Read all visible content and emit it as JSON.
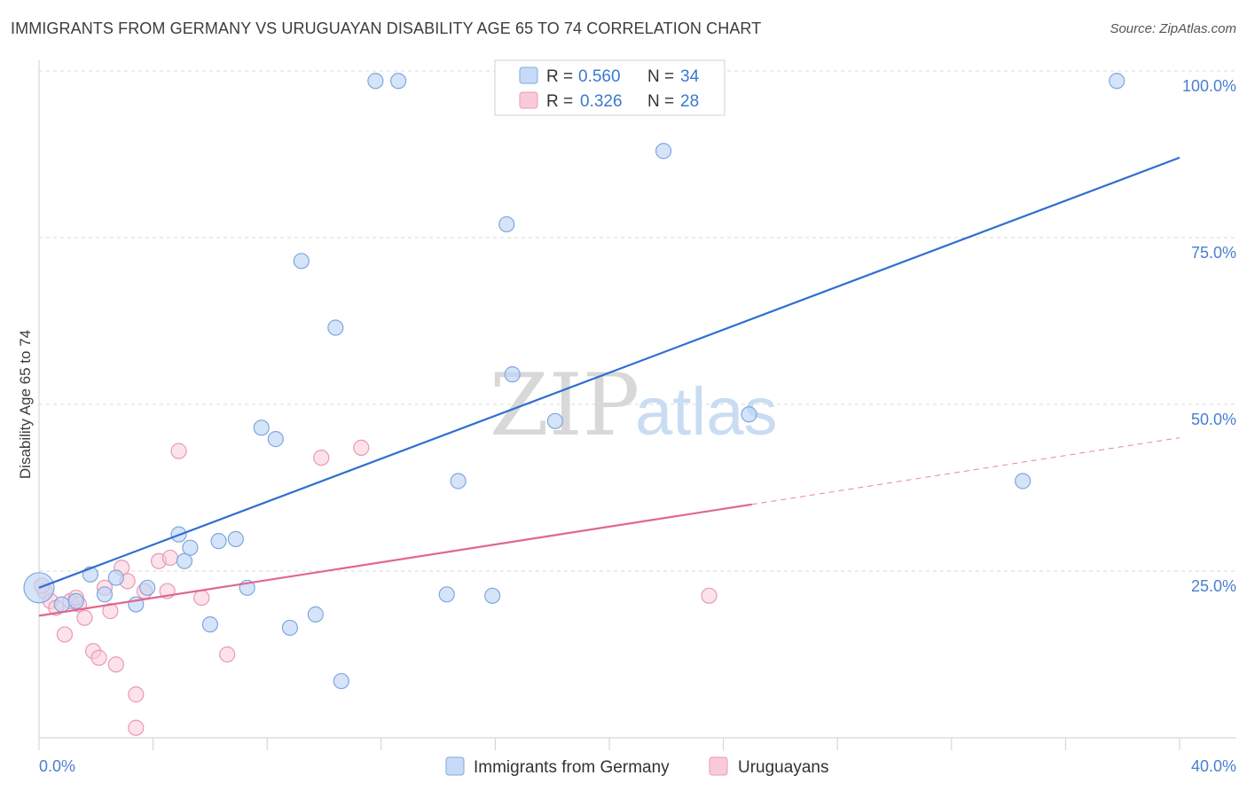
{
  "header": {
    "title": "IMMIGRANTS FROM GERMANY VS URUGUAYAN DISABILITY AGE 65 TO 74 CORRELATION CHART",
    "source": "Source: ZipAtlas.com"
  },
  "watermark": {
    "zip": "ZIP",
    "atlas": "atlas"
  },
  "legend": {
    "r_label": "R =",
    "n_label": "N =",
    "series": [
      {
        "name": "Immigrants from Germany",
        "r": "0.560",
        "n": "34",
        "fill": "#c8dbf6",
        "stroke": "#7ea7e0"
      },
      {
        "name": "Uruguayans",
        "r": "0.326",
        "n": "28",
        "fill": "#f9cbd8",
        "stroke": "#e89ab3"
      }
    ]
  },
  "colors": {
    "blue_line": "#2f6fd1",
    "pink_line": "#e0668f",
    "grid": "#d9d9d9",
    "tick_text": "#4a7fd0"
  },
  "chart_data": {
    "type": "scatter",
    "title": "IMMIGRANTS FROM GERMANY VS URUGUAYAN DISABILITY AGE 65 TO 74 CORRELATION CHART",
    "xlabel": "",
    "ylabel": "Disability Age 65 to 74",
    "xlim": [
      0,
      40
    ],
    "ylim": [
      0,
      100
    ],
    "x_tick_labels": [
      "0.0%",
      "40.0%"
    ],
    "y_tick_labels": [
      {
        "value": 25,
        "label": "25.0%"
      },
      {
        "value": 50,
        "label": "50.0%"
      },
      {
        "value": 75,
        "label": "75.0%"
      },
      {
        "value": 100,
        "label": "100.0%"
      }
    ],
    "series": [
      {
        "name": "Immigrants from Germany",
        "points": [
          {
            "x": 0.0,
            "y": 22.5,
            "big": true
          },
          {
            "x": 0.8,
            "y": 20.0
          },
          {
            "x": 1.3,
            "y": 20.5
          },
          {
            "x": 1.8,
            "y": 24.5
          },
          {
            "x": 2.3,
            "y": 21.5
          },
          {
            "x": 2.7,
            "y": 24.0
          },
          {
            "x": 3.4,
            "y": 20.0
          },
          {
            "x": 3.8,
            "y": 22.5
          },
          {
            "x": 5.1,
            "y": 26.5
          },
          {
            "x": 4.9,
            "y": 30.5
          },
          {
            "x": 5.3,
            "y": 28.5
          },
          {
            "x": 6.0,
            "y": 17.0
          },
          {
            "x": 6.3,
            "y": 29.5
          },
          {
            "x": 6.9,
            "y": 29.8
          },
          {
            "x": 7.3,
            "y": 22.5
          },
          {
            "x": 7.8,
            "y": 46.5
          },
          {
            "x": 8.3,
            "y": 44.8
          },
          {
            "x": 8.8,
            "y": 16.5
          },
          {
            "x": 9.2,
            "y": 71.5
          },
          {
            "x": 9.7,
            "y": 18.5
          },
          {
            "x": 10.4,
            "y": 61.5
          },
          {
            "x": 10.6,
            "y": 8.5
          },
          {
            "x": 11.8,
            "y": 98.5
          },
          {
            "x": 12.6,
            "y": 98.5
          },
          {
            "x": 14.3,
            "y": 21.5
          },
          {
            "x": 14.7,
            "y": 38.5
          },
          {
            "x": 15.9,
            "y": 21.3
          },
          {
            "x": 16.4,
            "y": 77.0
          },
          {
            "x": 16.6,
            "y": 54.5
          },
          {
            "x": 18.1,
            "y": 47.5
          },
          {
            "x": 21.9,
            "y": 88.0
          },
          {
            "x": 24.9,
            "y": 48.5
          },
          {
            "x": 34.5,
            "y": 38.5
          },
          {
            "x": 37.8,
            "y": 98.5
          }
        ],
        "trend": {
          "x1": 0,
          "y1": 22.5,
          "x2": 40,
          "y2": 87
        }
      },
      {
        "name": "Uruguayans",
        "points": [
          {
            "x": 0.2,
            "y": 22.0
          },
          {
            "x": 0.4,
            "y": 20.5
          },
          {
            "x": 0.6,
            "y": 19.5
          },
          {
            "x": 0.9,
            "y": 15.5
          },
          {
            "x": 1.1,
            "y": 20.5
          },
          {
            "x": 1.4,
            "y": 20.0
          },
          {
            "x": 1.6,
            "y": 18.0
          },
          {
            "x": 1.9,
            "y": 13.0
          },
          {
            "x": 2.1,
            "y": 12.0
          },
          {
            "x": 2.3,
            "y": 22.5
          },
          {
            "x": 2.5,
            "y": 19.0
          },
          {
            "x": 2.7,
            "y": 11.0
          },
          {
            "x": 2.9,
            "y": 25.5
          },
          {
            "x": 3.1,
            "y": 23.5
          },
          {
            "x": 3.4,
            "y": 6.5
          },
          {
            "x": 3.4,
            "y": 1.5
          },
          {
            "x": 3.7,
            "y": 22.0
          },
          {
            "x": 4.2,
            "y": 26.5
          },
          {
            "x": 4.5,
            "y": 22.0
          },
          {
            "x": 4.9,
            "y": 43.0
          },
          {
            "x": 5.7,
            "y": 21.0
          },
          {
            "x": 6.6,
            "y": 12.5
          },
          {
            "x": 9.9,
            "y": 42.0
          },
          {
            "x": 11.3,
            "y": 43.5
          },
          {
            "x": 23.5,
            "y": 21.3
          },
          {
            "x": 0.1,
            "y": 22.8
          },
          {
            "x": 1.3,
            "y": 21.0
          },
          {
            "x": 4.6,
            "y": 27.0
          }
        ],
        "trend": {
          "x1": 0,
          "y1": 18.3,
          "x2": 25,
          "y2": 35
        },
        "trend_dashed_to": {
          "x": 40,
          "y": 45
        }
      }
    ]
  }
}
